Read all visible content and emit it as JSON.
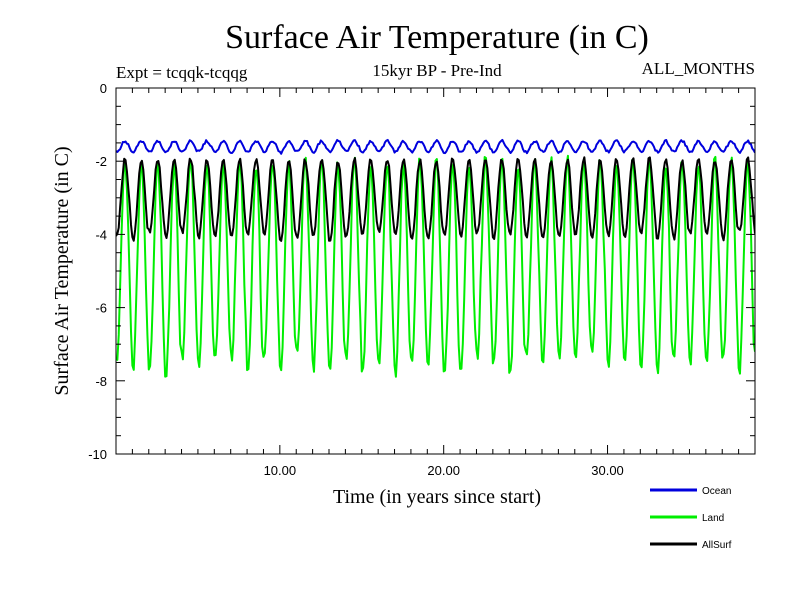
{
  "chart_data": {
    "type": "line",
    "title": "Surface Air Temperature (in C)",
    "subtitle": "15kyr BP - Pre-Ind",
    "expt_label": "Expt = tcqqk-tcqqg",
    "months_label": "ALL_MONTHS",
    "xlabel": "Time (in years since start)",
    "ylabel": "Surface Air Temperature (in C)",
    "xlim": [
      0,
      39
    ],
    "ylim": [
      -10,
      0
    ],
    "xticks": [
      10,
      20,
      30
    ],
    "xtick_labels": [
      "10.00",
      "20.00",
      "30.00"
    ],
    "yticks": [
      0,
      -2,
      -4,
      -6,
      -8,
      -10
    ],
    "ytick_labels": [
      "0",
      "-2",
      "-4",
      "-6",
      "-8",
      "-10"
    ],
    "legend_position": "bottom-right",
    "series": [
      {
        "name": "Ocean",
        "color": "#0000dd",
        "period_years": 1,
        "mean": -1.6,
        "amplitude": 0.15,
        "min": -1.9,
        "max": -1.3
      },
      {
        "name": "Land",
        "color": "#00ee00",
        "period_years": 1,
        "mean": -4.8,
        "amplitude": 2.8,
        "min": -8.2,
        "max": -1.6
      },
      {
        "name": "AllSurf",
        "color": "#000000",
        "period_years": 1,
        "mean": -3.0,
        "amplitude": 1.05,
        "min": -4.3,
        "max": -1.7
      }
    ]
  }
}
